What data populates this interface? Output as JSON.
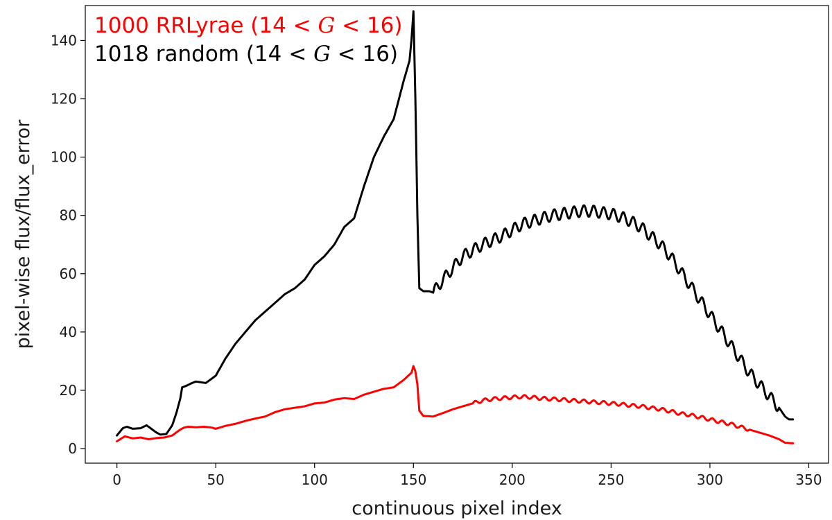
{
  "chart_data": {
    "type": "line",
    "title": "",
    "xlabel": "continuous pixel index",
    "ylabel": "pixel-wise flux/flux_error",
    "xlim": [
      -16,
      360
    ],
    "ylim": [
      -5,
      152
    ],
    "xticks": [
      0,
      50,
      100,
      150,
      200,
      250,
      300,
      350
    ],
    "yticks": [
      0,
      20,
      40,
      60,
      80,
      100,
      120,
      140
    ],
    "grid": false,
    "legend_placement": "top-left",
    "series": [
      {
        "name": "1000 RRLyrae (14 < G < 16)",
        "legend_prefix": "1000 RRLyrae (14",
        "legend_mid": "G",
        "legend_suffix": "16)",
        "color": "#ff0000",
        "x": [
          0,
          4,
          8,
          12,
          16,
          20,
          24,
          28,
          30,
          32,
          34,
          36,
          40,
          44,
          48,
          50,
          55,
          60,
          65,
          70,
          75,
          80,
          85,
          90,
          95,
          100,
          105,
          110,
          115,
          120,
          125,
          130,
          135,
          140,
          145,
          149,
          150,
          151,
          152,
          153,
          155,
          160,
          165,
          170,
          175,
          180,
          185,
          190,
          195,
          200,
          205,
          210,
          215,
          220,
          225,
          230,
          235,
          240,
          245,
          250,
          255,
          260,
          265,
          270,
          275,
          280,
          285,
          290,
          295,
          300,
          305,
          310,
          315,
          320,
          325,
          330,
          335,
          338,
          342
        ],
        "y": [
          2.5,
          4.2,
          3.5,
          3.8,
          3.2,
          3.6,
          3.8,
          4.5,
          5.5,
          6.5,
          7.2,
          7.5,
          7.3,
          7.5,
          7.2,
          6.8,
          7.8,
          8.5,
          9.5,
          10.3,
          11.0,
          12.5,
          13.5,
          14.0,
          14.5,
          15.5,
          15.8,
          16.8,
          17.3,
          17.0,
          18.5,
          19.5,
          20.5,
          21.0,
          23.5,
          26.0,
          28.3,
          26.5,
          22.0,
          13.0,
          11.2,
          11.0,
          12.2,
          13.5,
          14.5,
          15.5,
          16.5,
          17.0,
          17.3,
          17.6,
          17.8,
          17.6,
          17.2,
          17.0,
          16.8,
          16.5,
          16.3,
          16.0,
          15.8,
          15.5,
          15.2,
          14.8,
          14.5,
          14.0,
          13.5,
          12.8,
          12.0,
          11.5,
          10.8,
          10.0,
          9.2,
          8.5,
          7.5,
          6.5,
          5.5,
          4.5,
          3.2,
          2.0,
          1.8
        ],
        "ripple_period": 5,
        "ripple_range": [
          180,
          320
        ],
        "ripple_amplitude": 0.6
      },
      {
        "name": "1018 random (14 < G < 16)",
        "legend_prefix": "1018 random (14",
        "legend_mid": "G",
        "legend_suffix": "16)",
        "color": "#000000",
        "x": [
          0,
          3,
          5,
          8,
          12,
          15,
          18,
          20,
          22,
          25,
          28,
          30,
          32,
          33,
          35,
          38,
          40,
          45,
          50,
          55,
          60,
          65,
          70,
          75,
          80,
          85,
          90,
          95,
          100,
          105,
          110,
          115,
          120,
          125,
          130,
          135,
          140,
          145,
          148,
          149,
          150,
          151,
          152,
          153,
          155,
          158,
          160,
          165,
          170,
          175,
          180,
          185,
          190,
          195,
          200,
          205,
          210,
          215,
          220,
          225,
          230,
          235,
          240,
          245,
          250,
          255,
          260,
          265,
          270,
          275,
          280,
          285,
          290,
          295,
          300,
          305,
          310,
          315,
          320,
          325,
          330,
          335,
          338,
          340,
          342
        ],
        "y": [
          4.5,
          7.0,
          7.5,
          6.8,
          7.0,
          8.0,
          6.5,
          5.5,
          4.8,
          5.0,
          8.0,
          12.0,
          17.0,
          21.0,
          21.5,
          22.5,
          23.0,
          22.5,
          25.0,
          31.0,
          36.0,
          40.0,
          44.0,
          47.0,
          50.0,
          53.0,
          55.0,
          58.0,
          63.0,
          66.0,
          70.0,
          76.0,
          79.0,
          90.0,
          100.0,
          107.0,
          113.0,
          126.0,
          133.0,
          140.0,
          150.0,
          120.0,
          80.0,
          55.0,
          54.0,
          54.0,
          53.5,
          58.0,
          62.0,
          66.0,
          68.0,
          70.0,
          71.5,
          73.0,
          75.0,
          77.0,
          78.0,
          79.0,
          80.0,
          80.5,
          81.0,
          81.5,
          81.5,
          81.0,
          80.5,
          79.5,
          78.0,
          76.0,
          73.0,
          70.0,
          66.0,
          61.0,
          56.0,
          51.0,
          46.0,
          41.0,
          36.0,
          31.0,
          26.0,
          22.0,
          18.0,
          14.0,
          11.0,
          10.0,
          10.0
        ],
        "ripple_period": 5,
        "ripple_range": [
          160,
          335
        ],
        "ripple_amplitude": 2.0
      }
    ]
  }
}
